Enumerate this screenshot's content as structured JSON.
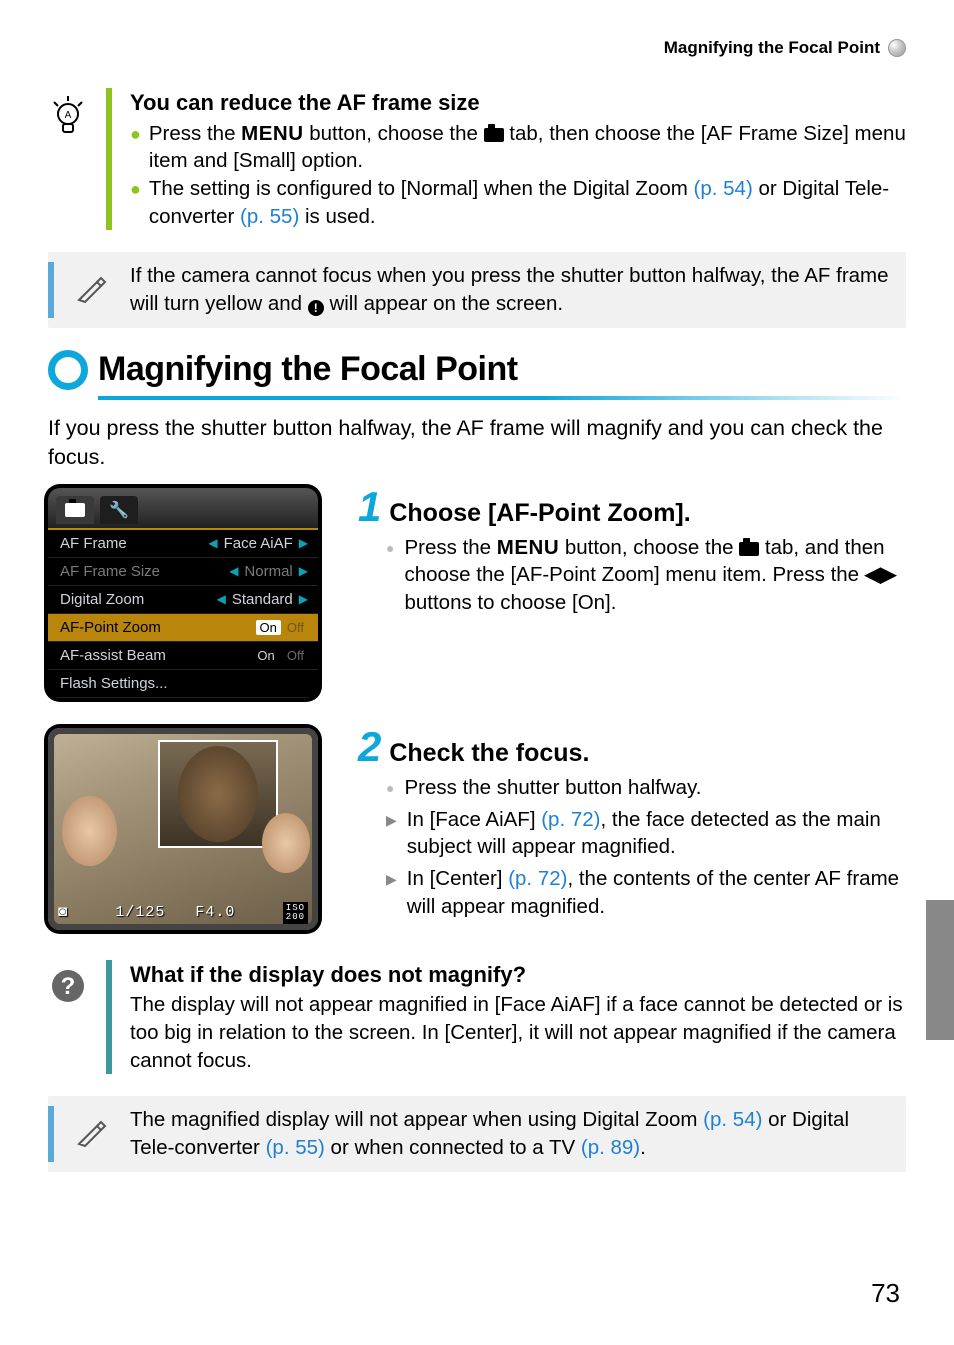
{
  "header": {
    "title": "Magnifying the Focal Point"
  },
  "tip": {
    "title": "You can reduce the AF frame size",
    "b1_pre": "Press the ",
    "b1_menu": "MENU",
    "b1_mid": " button, choose the ",
    "b1_post": " tab, then choose the [AF Frame Size] menu item and [Small] option.",
    "b2_pre": "The setting is configured to [Normal] when the Digital Zoom ",
    "b2_ref1": "(p. 54)",
    "b2_mid": " or Digital Tele-converter ",
    "b2_ref2": "(p. 55)",
    "b2_post": " is used."
  },
  "note1": {
    "l1": "If the camera cannot focus when you press the shutter button halfway, the AF frame will turn yellow and ",
    "l2": " will appear on the screen."
  },
  "section_title": "Magnifying the Focal Point",
  "intro": "If you press the shutter button halfway, the AF frame will magnify and you can check the focus.",
  "menu_fig": {
    "rows": [
      {
        "label": "AF Frame",
        "value": "Face AiAF",
        "style": "norm",
        "pre_arrow": true,
        "post_arrow": true
      },
      {
        "label": "AF Frame Size",
        "value": "Normal",
        "style": "dim",
        "pre_arrow": true,
        "post_arrow": true
      },
      {
        "label": "Digital Zoom",
        "value": "Standard",
        "style": "norm",
        "pre_arrow": true,
        "post_arrow": true
      },
      {
        "label": "AF-Point Zoom",
        "on": "On",
        "off": "Off",
        "style": "sel"
      },
      {
        "label": "AF-assist Beam",
        "on": "On",
        "off": "Off",
        "style": "norm2"
      },
      {
        "label": "Flash Settings...",
        "style": "plain"
      }
    ]
  },
  "step1": {
    "title": "Choose [AF-Point Zoom].",
    "body_pre": "Press the ",
    "menu": "MENU",
    "body_mid1": " button, choose the ",
    "body_mid2": " tab, and then choose the [AF-Point Zoom] menu item. Press the ",
    "body_post": " buttons to choose [On]."
  },
  "photo_fig": {
    "shutter": "1/125",
    "aperture": "F4.0",
    "iso_label": "ISO",
    "iso_val": "200"
  },
  "step2": {
    "title": "Check the focus.",
    "b1": "Press the shutter button halfway.",
    "b2_pre": "In [Face AiAF] ",
    "b2_ref": "(p. 72)",
    "b2_post": ", the face detected as the main subject will appear magnified.",
    "b3_pre": "In [Center] ",
    "b3_ref": "(p. 72)",
    "b3_post": ", the contents of the center AF frame will appear magnified."
  },
  "question": {
    "title": "What if the display does not magnify?",
    "body": "The display will not appear magnified in [Face AiAF] if a face cannot be detected or is too big in relation to the screen. In [Center], it will not appear magnified if the camera cannot focus."
  },
  "note2": {
    "pre": "The magnified display will not appear when using Digital Zoom ",
    "ref1": "(p. 54)",
    "mid1": " or Digital Tele-converter ",
    "ref2": "(p. 55)",
    "mid2": " or when connected to a TV ",
    "ref3": "(p. 89)",
    "post": "."
  },
  "page_number": "73"
}
